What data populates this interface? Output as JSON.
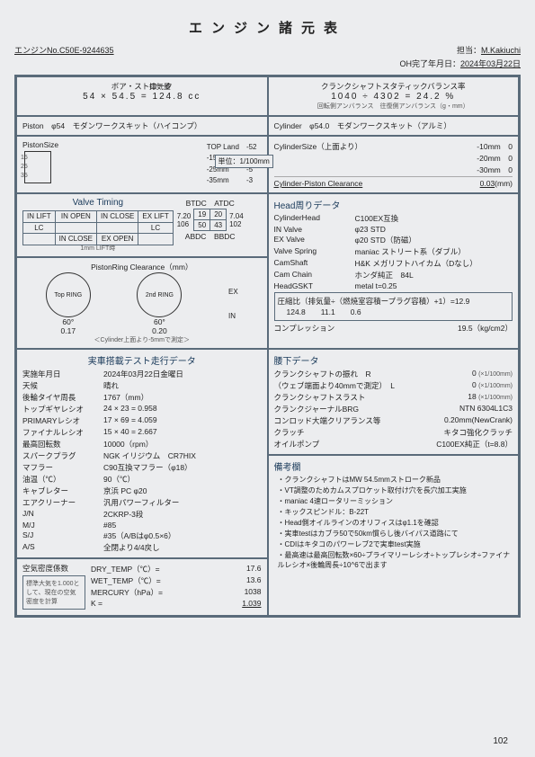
{
  "title": "エンジン諸元表",
  "header": {
    "engine_no_label": "エンジンNo.",
    "engine_no": "C50E-9244635",
    "person_label": "担当：",
    "person": "M.Kakiuchi",
    "oh_label": "OH完了年月日：",
    "oh_date": "2024年03月22日"
  },
  "bore_stroke": {
    "label": "ボア・ストローク",
    "bore": "54",
    "stroke": "54.5",
    "disp_label": "排気量",
    "disp": "124.8",
    "unit": "cc"
  },
  "crank_balance": {
    "label": "クランクシャフトスタティックバランス率",
    "a": "1040",
    "b": "4302",
    "result": "24.2",
    "unit": "%",
    "note": "回転側アンバランス　往復側アンバランス（g・mm）"
  },
  "piston": {
    "label": "Piston　φ54　モダンワークスキット（ハイコンプ）"
  },
  "cylinder": {
    "label": "Cylinder　φ54.0　モダンワークスキット（アルミ）"
  },
  "piston_size": {
    "title": "PistonSize",
    "top_land": "TOP Land",
    "top_land_v": "-52",
    "m15": "-15mm",
    "m15v": "-10",
    "m25": "-25mm",
    "m25v": "-5",
    "m35": "-35mm",
    "m35v": "-3",
    "scale15": "15",
    "scale25": "25",
    "scale35": "35",
    "unit_label": "単位：1/100mm"
  },
  "cyl_size": {
    "title": "CylinderSize（上面より）",
    "r1": "-10mm",
    "r1v": "0",
    "r2": "-20mm",
    "r2v": "0",
    "r3": "-30mm",
    "r3v": "0",
    "clearance_label": "Cylinder-Piston Clearance",
    "clearance": "0.03",
    "clearance_unit": "(mm)"
  },
  "valve_timing": {
    "title": "Valve Timing",
    "btdc": "BTDC",
    "atdc": "ATDC",
    "abdc": "ABDC",
    "bbdc": "BBDC",
    "v1": "19",
    "v2": "20",
    "v3": "50",
    "v4": "43",
    "l1": "7.20",
    "l2": "7.04",
    "l3": "106",
    "l4": "102",
    "lift_label": "1mm LIFT時",
    "in_open": "IN OPEN",
    "in_close": "IN CLOSE",
    "ex_close": "EX CLOSE",
    "ex_open": "EX OPEN",
    "in_lift": "IN LIFT",
    "ex_lift": "EX LIFT",
    "lc": "LC"
  },
  "ring_clearance": {
    "title": "PistonRing Clearance（mm）",
    "top": "Top RING",
    "second": "2nd RING",
    "top_v": "0.17",
    "second_v": "0.20",
    "ang": "60°",
    "ex": "EX",
    "in": "IN",
    "note": "＜Cylinder上面より-5mmで測定＞"
  },
  "head": {
    "title": "Head周りデータ",
    "rows": [
      {
        "k": "CylinderHead",
        "v": "C100EX互換"
      },
      {
        "k": "IN Valve",
        "v": "φ23 STD"
      },
      {
        "k": "EX Valve",
        "v": "φ20 STD（防磁）"
      },
      {
        "k": "Valve Spring",
        "v": "maniac ストリート系（ダブル）"
      },
      {
        "k": "CamShaft",
        "v": "H&K メガリフトハイカム（Dなし）"
      },
      {
        "k": "Cam Chain",
        "v": "ホンダ純正　84L"
      },
      {
        "k": "HeadGSKT",
        "v": "metal t=0.25"
      }
    ],
    "comp_formula_label": "圧縮比（排気量÷（燃焼室容積ープラグ容積）+1）=",
    "comp_result": "12.9",
    "comp_a": "124.8",
    "comp_b": "11.1",
    "comp_c": "0.6",
    "compression_label": "コンプレッション",
    "compression": "19.5（kg/cm2）"
  },
  "test_data": {
    "title": "実車搭載テスト走行データ",
    "rows": [
      {
        "k": "実施年月日",
        "v": "2024年03月22日金曜日"
      },
      {
        "k": "天候",
        "v": "晴れ"
      },
      {
        "k": "後輪タイヤ周長",
        "v": "1767（mm）"
      },
      {
        "k": "トップギヤレシオ",
        "v": "24 × 23 = 0.958"
      },
      {
        "k": "PRIMARYレシオ",
        "v": "17 × 69 = 4.059"
      },
      {
        "k": "ファイナルレシオ",
        "v": "15 × 40 = 2.667"
      },
      {
        "k": "最高回転数",
        "v": "10000（rpm）"
      },
      {
        "k": "スパークプラグ",
        "v": "NGK イリジウム　CR7HIX"
      },
      {
        "k": "マフラー",
        "v": "C90互換マフラー（φ18）"
      },
      {
        "k": "油温（℃）",
        "v": "90（℃）"
      },
      {
        "k": "キャブレター",
        "v": "京浜 PC φ20"
      },
      {
        "k": "エアクリーナー",
        "v": "汎用パワーフィルター"
      },
      {
        "k": "J/N",
        "v": "2CKRP-3段"
      },
      {
        "k": "M/J",
        "v": "#85"
      },
      {
        "k": "S/J",
        "v": "#35（A/Bはφ0.5×6）"
      },
      {
        "k": "A/S",
        "v": "全閉より4/4戻し"
      }
    ]
  },
  "lower": {
    "title": "腰下データ",
    "rows": [
      {
        "k": "クランクシャフトの振れ　R",
        "v": "0",
        "u": "(×1/100mm)"
      },
      {
        "k": "（ウェブ端面より40mmで測定）　L",
        "v": "0",
        "u": "(×1/100mm)"
      },
      {
        "k": "クランクシャフトスラスト",
        "v": "18",
        "u": "(×1/100mm)"
      },
      {
        "k": "クランクジャーナルBRG",
        "v": "NTN 6304L1C3",
        "u": ""
      },
      {
        "k": "コンロッド大端クリアランス等",
        "v": "0.20mm(NewCrank)",
        "u": ""
      },
      {
        "k": "クラッチ",
        "v": "キタコ強化クラッチ",
        "u": ""
      },
      {
        "k": "オイルポンプ",
        "v": "C100EX純正（t=8.8）",
        "u": ""
      }
    ]
  },
  "remarks": {
    "title": "備考欄",
    "items": [
      "クランクシャフトはMW 54.5mmストローク新品",
      "VT調整のためカムスプロケット取付け穴を長穴加工実施",
      "maniac 4速ロータリーミッション",
      "キックスピンドル：B-22T",
      "Head側オイルラインのオリフィスはφ1.1を確認",
      "実車testはカブラ50で50km慣らし後バイパス道路にて",
      "CDIはキタコのパワーレブ2で実車test実施",
      "最高速は最高回転数×60÷プライマリーレシオ÷トップレシオ÷ファイナルレシオ×後輪周長÷10^6で出ます"
    ]
  },
  "air_density": {
    "label": "空気密度係数",
    "note": "標準大気を1.000として、現在の空気密度を計算",
    "dry_label": "DRY_TEMP（℃）=",
    "dry": "17.6",
    "wet_label": "WET_TEMP（℃）=",
    "wet": "13.6",
    "mer_label": "MERCURY（hPa）=",
    "mer": "1038",
    "k_label": "K =",
    "k": "1.039"
  },
  "page": "102"
}
